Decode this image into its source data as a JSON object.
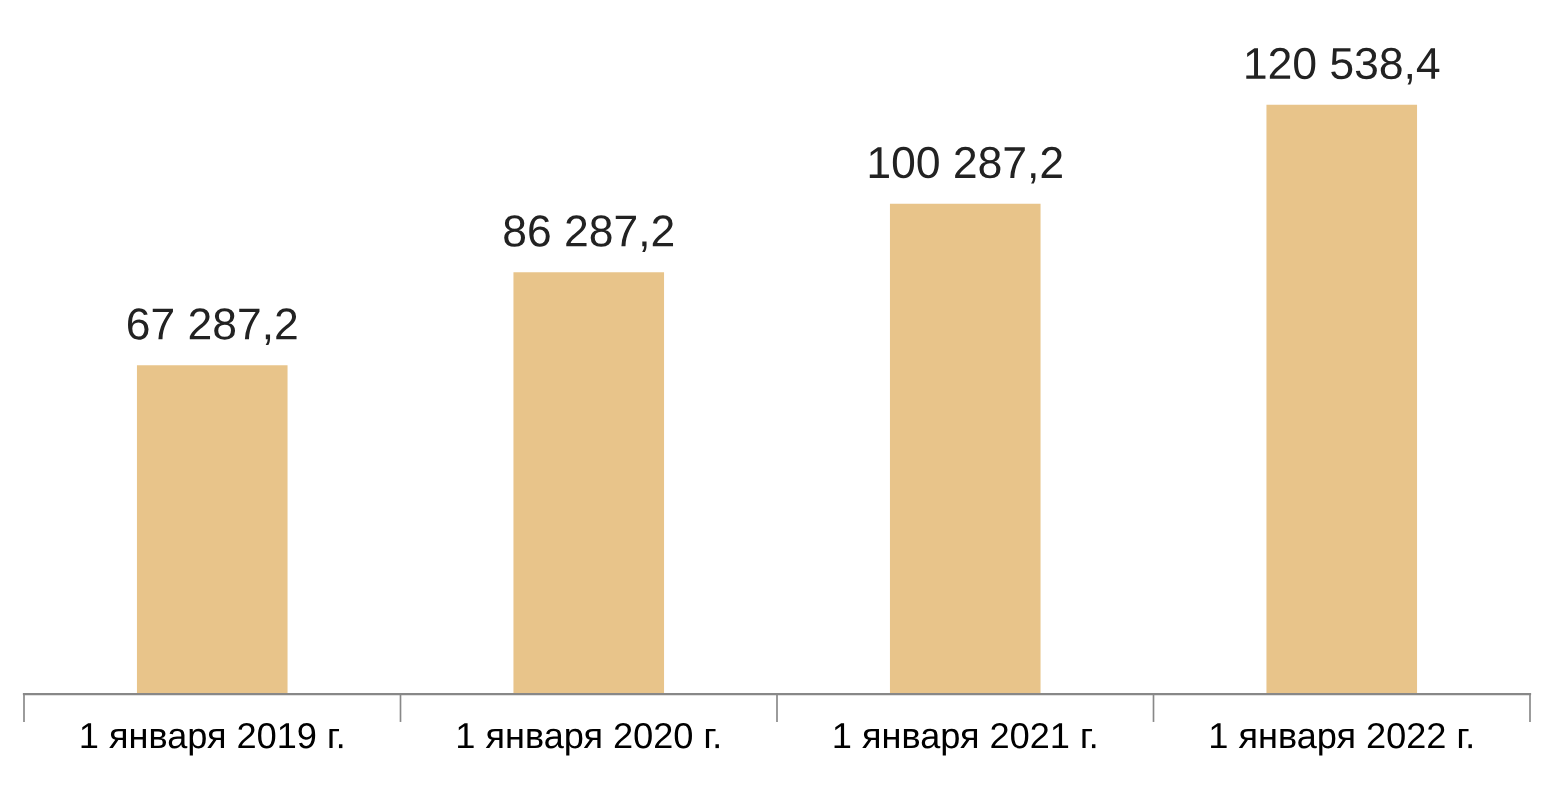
{
  "chart_data": {
    "type": "bar",
    "categories": [
      "1 января 2019 г.",
      "1 января 2020 г.",
      "1 января 2021 г.",
      "1 января 2022 г."
    ],
    "values": [
      67287.2,
      86287.2,
      100287.2,
      120538.4
    ],
    "color": "#e8c48a",
    "value_labels": [
      "67 287,2",
      "86 287,2",
      "100 287,2",
      "120 538,4"
    ],
    "grid": false,
    "legend": false
  }
}
